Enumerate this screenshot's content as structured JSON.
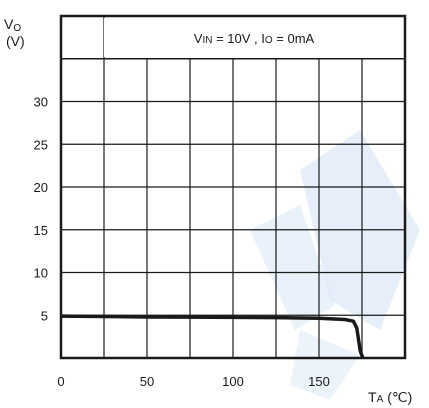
{
  "chart_data": {
    "type": "line",
    "y_axis_label": {
      "main": "V",
      "sub": "O",
      "unit": "(V)"
    },
    "x_axis_label": {
      "main": "T",
      "sub": "A",
      "unit": "(℃)"
    },
    "condition": {
      "v": "V",
      "v_sub": "IN",
      "v_value": " = 10V , ",
      "i": "I",
      "i_sub": "O",
      "i_value": " = 0mA"
    },
    "xlim": [
      0,
      200
    ],
    "ylim": [
      0,
      40
    ],
    "x_ticks": [
      0,
      50,
      100,
      150
    ],
    "y_ticks": [
      5,
      10,
      15,
      20,
      25,
      30
    ],
    "grid": true,
    "series": [
      {
        "color": "#1a1a1a",
        "x": [
          0,
          25,
          50,
          75,
          100,
          125,
          150,
          165,
          170,
          172,
          174,
          175.5
        ],
        "y": [
          4.9,
          4.85,
          4.8,
          4.78,
          4.75,
          4.72,
          4.65,
          4.5,
          4.3,
          3.5,
          0.8,
          0
        ]
      }
    ]
  },
  "colors": {
    "axis": "#1a1a1a",
    "watermark": "#dbe8f6"
  }
}
